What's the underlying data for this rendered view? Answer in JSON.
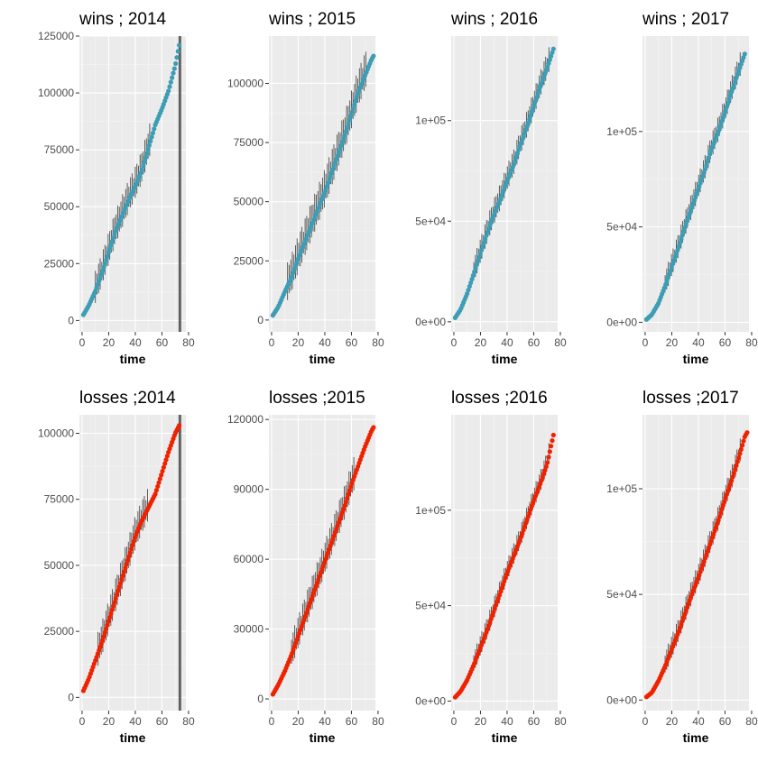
{
  "figure": {
    "title": "",
    "layout": "2 rows x 4 columns of scatter panels with error bars"
  },
  "colors": {
    "wins": "#3d9db4",
    "losses": "#ee2200",
    "errorbar": "#4d4d4d",
    "panel_bg": "#ebebeb",
    "grid_major": "#ffffff"
  },
  "chart_data": [
    {
      "type": "scatter",
      "title": "wins ; 2014",
      "xlabel": "time",
      "ylabel": "",
      "xlim": [
        -2,
        78
      ],
      "ylim": [
        -5000,
        125000
      ],
      "xticks": [
        0,
        20,
        40,
        60,
        80
      ],
      "xtick_labels": [
        "0",
        "20",
        "40",
        "60",
        "80"
      ],
      "yticks": [
        0,
        25000,
        50000,
        75000,
        100000,
        125000
      ],
      "ytick_labels": [
        "0",
        "25000",
        "50000",
        "75000",
        "100000",
        "125000"
      ],
      "series": [
        {
          "values": [
            [
              1,
              2500
            ],
            [
              5,
              6500
            ],
            [
              10,
              13000
            ],
            [
              15,
              21000
            ],
            [
              20,
              30000
            ],
            [
              25,
              39000
            ],
            [
              30,
              46000
            ],
            [
              35,
              53000
            ],
            [
              40,
              59000
            ],
            [
              45,
              66000
            ],
            [
              50,
              76000
            ],
            [
              55,
              86000
            ],
            [
              60,
              93000
            ],
            [
              65,
              101000
            ],
            [
              70,
              112000
            ],
            [
              73,
              121000
            ]
          ]
        }
      ],
      "error_band": {
        "x": [
          10,
          52
        ],
        "halfwidth": 9000
      },
      "vlines": [
        73,
        74
      ]
    },
    {
      "type": "scatter",
      "title": "wins ; 2015",
      "xlabel": "time",
      "ylabel": "",
      "xlim": [
        -2,
        78
      ],
      "ylim": [
        -5000,
        120000
      ],
      "xticks": [
        0,
        20,
        40,
        60,
        80
      ],
      "xtick_labels": [
        "0",
        "20",
        "40",
        "60",
        "80"
      ],
      "yticks": [
        0,
        25000,
        50000,
        75000,
        100000
      ],
      "ytick_labels": [
        "0",
        "25000",
        "50000",
        "75000",
        "100000"
      ],
      "series": [
        {
          "values": [
            [
              1,
              2000
            ],
            [
              5,
              5500
            ],
            [
              10,
              12000
            ],
            [
              15,
              18000
            ],
            [
              20,
              26000
            ],
            [
              25,
              33000
            ],
            [
              30,
              40000
            ],
            [
              35,
              47000
            ],
            [
              40,
              54000
            ],
            [
              45,
              62000
            ],
            [
              50,
              70000
            ],
            [
              55,
              78000
            ],
            [
              60,
              87000
            ],
            [
              65,
              96000
            ],
            [
              70,
              103000
            ],
            [
              75,
              110000
            ],
            [
              77,
              112000
            ]
          ]
        }
      ],
      "error_band": {
        "x": [
          12,
          72
        ],
        "halfwidth": 10000
      }
    },
    {
      "type": "scatter",
      "title": "wins ; 2016",
      "xlabel": "time",
      "ylabel": "",
      "xlim": [
        -2,
        78
      ],
      "ylim": [
        -5000,
        142000
      ],
      "xticks": [
        0,
        20,
        40,
        60,
        80
      ],
      "xtick_labels": [
        "0",
        "20",
        "40",
        "60",
        "80"
      ],
      "yticks": [
        0,
        50000,
        100000
      ],
      "ytick_labels": [
        "0e+00",
        "5e+04",
        "1e+05"
      ],
      "series": [
        {
          "values": [
            [
              1,
              2000
            ],
            [
              5,
              6000
            ],
            [
              10,
              14000
            ],
            [
              15,
              24000
            ],
            [
              20,
              34000
            ],
            [
              25,
              44000
            ],
            [
              30,
              53000
            ],
            [
              35,
              61000
            ],
            [
              40,
              70000
            ],
            [
              45,
              78000
            ],
            [
              50,
              88000
            ],
            [
              55,
              97000
            ],
            [
              60,
              107000
            ],
            [
              65,
              117000
            ],
            [
              70,
              126000
            ],
            [
              75,
              136000
            ]
          ]
        }
      ],
      "error_band": {
        "x": [
          15,
          72
        ],
        "halfwidth": 8000
      }
    },
    {
      "type": "scatter",
      "title": "wins ; 2017",
      "xlabel": "time",
      "ylabel": "",
      "xlim": [
        -2,
        78
      ],
      "ylim": [
        -5000,
        150000
      ],
      "xticks": [
        0,
        20,
        40,
        60,
        80
      ],
      "xtick_labels": [
        "0",
        "20",
        "40",
        "60",
        "80"
      ],
      "yticks": [
        0,
        50000,
        100000
      ],
      "ytick_labels": [
        "0e+00",
        "5e+04",
        "1e+05"
      ],
      "series": [
        {
          "values": [
            [
              1,
              1500
            ],
            [
              5,
              4000
            ],
            [
              10,
              10000
            ],
            [
              15,
              19000
            ],
            [
              20,
              29000
            ],
            [
              25,
              39000
            ],
            [
              30,
              50000
            ],
            [
              35,
              60000
            ],
            [
              40,
              70000
            ],
            [
              45,
              80000
            ],
            [
              50,
              91000
            ],
            [
              55,
              100000
            ],
            [
              60,
              110000
            ],
            [
              65,
              121000
            ],
            [
              70,
              131000
            ],
            [
              75,
              141000
            ]
          ]
        }
      ],
      "error_band": {
        "x": [
          15,
          72
        ],
        "halfwidth": 8000
      }
    },
    {
      "type": "scatter",
      "title": "losses ;2014",
      "xlabel": "time",
      "ylabel": "",
      "xlim": [
        -2,
        78
      ],
      "ylim": [
        -5000,
        107000
      ],
      "xticks": [
        0,
        20,
        40,
        60,
        80
      ],
      "xtick_labels": [
        "0",
        "20",
        "40",
        "60",
        "80"
      ],
      "yticks": [
        0,
        25000,
        50000,
        75000,
        100000
      ],
      "ytick_labels": [
        "0",
        "25000",
        "50000",
        "75000",
        "100000"
      ],
      "series": [
        {
          "values": [
            [
              1,
              2500
            ],
            [
              5,
              7000
            ],
            [
              10,
              14000
            ],
            [
              15,
              21000
            ],
            [
              20,
              29000
            ],
            [
              25,
              37000
            ],
            [
              30,
              45000
            ],
            [
              35,
              53000
            ],
            [
              40,
              61000
            ],
            [
              45,
              67000
            ],
            [
              50,
              72000
            ],
            [
              55,
              77000
            ],
            [
              60,
              85000
            ],
            [
              65,
              93000
            ],
            [
              70,
              100000
            ],
            [
              73,
              103000
            ]
          ]
        }
      ],
      "error_band": {
        "x": [
          12,
          50
        ],
        "halfwidth": 8000
      },
      "vlines": [
        73,
        74
      ]
    },
    {
      "type": "scatter",
      "title": "losses ;2015",
      "xlabel": "time",
      "ylabel": "",
      "xlim": [
        -2,
        78
      ],
      "ylim": [
        -5000,
        122000
      ],
      "xticks": [
        0,
        20,
        40,
        60,
        80
      ],
      "xtick_labels": [
        "0",
        "20",
        "40",
        "60",
        "80"
      ],
      "yticks": [
        0,
        30000,
        60000,
        90000,
        120000
      ],
      "ytick_labels": [
        "0",
        "30000",
        "60000",
        "90000",
        "120000"
      ],
      "series": [
        {
          "values": [
            [
              1,
              2000
            ],
            [
              5,
              6000
            ],
            [
              10,
              12000
            ],
            [
              15,
              19000
            ],
            [
              20,
              27000
            ],
            [
              25,
              35000
            ],
            [
              30,
              43000
            ],
            [
              35,
              51000
            ],
            [
              40,
              59000
            ],
            [
              45,
              67000
            ],
            [
              50,
              75000
            ],
            [
              55,
              83000
            ],
            [
              60,
              92000
            ],
            [
              65,
              100000
            ],
            [
              70,
              108000
            ],
            [
              75,
              115000
            ],
            [
              77,
              117000
            ]
          ]
        }
      ],
      "error_band": {
        "x": [
          15,
          62
        ],
        "halfwidth": 9000
      }
    },
    {
      "type": "scatter",
      "title": "losses ;2016",
      "xlabel": "time",
      "ylabel": "",
      "xlim": [
        -2,
        78
      ],
      "ylim": [
        -5000,
        150000
      ],
      "xticks": [
        0,
        20,
        40,
        60,
        80
      ],
      "xtick_labels": [
        "0",
        "20",
        "40",
        "60",
        "80"
      ],
      "yticks": [
        0,
        50000,
        100000
      ],
      "ytick_labels": [
        "0e+00",
        "5e+04",
        "1e+05"
      ],
      "series": [
        {
          "values": [
            [
              1,
              2000
            ],
            [
              5,
              5000
            ],
            [
              10,
              11000
            ],
            [
              15,
              19000
            ],
            [
              20,
              28000
            ],
            [
              25,
              37000
            ],
            [
              30,
              47000
            ],
            [
              35,
              57000
            ],
            [
              40,
              67000
            ],
            [
              45,
              76000
            ],
            [
              50,
              85000
            ],
            [
              55,
              95000
            ],
            [
              60,
              105000
            ],
            [
              65,
              114000
            ],
            [
              70,
              124000
            ],
            [
              75,
              140000
            ]
          ]
        }
      ],
      "error_band": {
        "x": [
          15,
          72
        ],
        "halfwidth": 7000
      }
    },
    {
      "type": "scatter",
      "title": "losses ;2017",
      "xlabel": "time",
      "ylabel": "",
      "xlim": [
        -2,
        78
      ],
      "ylim": [
        -5000,
        135000
      ],
      "xticks": [
        0,
        20,
        40,
        60,
        80
      ],
      "xtick_labels": [
        "0",
        "20",
        "40",
        "60",
        "80"
      ],
      "yticks": [
        0,
        50000,
        100000
      ],
      "ytick_labels": [
        "0e+00",
        "5e+04",
        "1e+05"
      ],
      "series": [
        {
          "values": [
            [
              1,
              1500
            ],
            [
              5,
              3500
            ],
            [
              10,
              9000
            ],
            [
              15,
              16000
            ],
            [
              20,
              24000
            ],
            [
              25,
              32000
            ],
            [
              30,
              41000
            ],
            [
              35,
              50000
            ],
            [
              40,
              58000
            ],
            [
              45,
              67000
            ],
            [
              50,
              76000
            ],
            [
              55,
              85000
            ],
            [
              60,
              95000
            ],
            [
              65,
              104000
            ],
            [
              70,
              114000
            ],
            [
              75,
              125000
            ],
            [
              77,
              127000
            ]
          ]
        }
      ],
      "error_band": {
        "x": [
          15,
          72
        ],
        "halfwidth": 7000
      }
    }
  ]
}
